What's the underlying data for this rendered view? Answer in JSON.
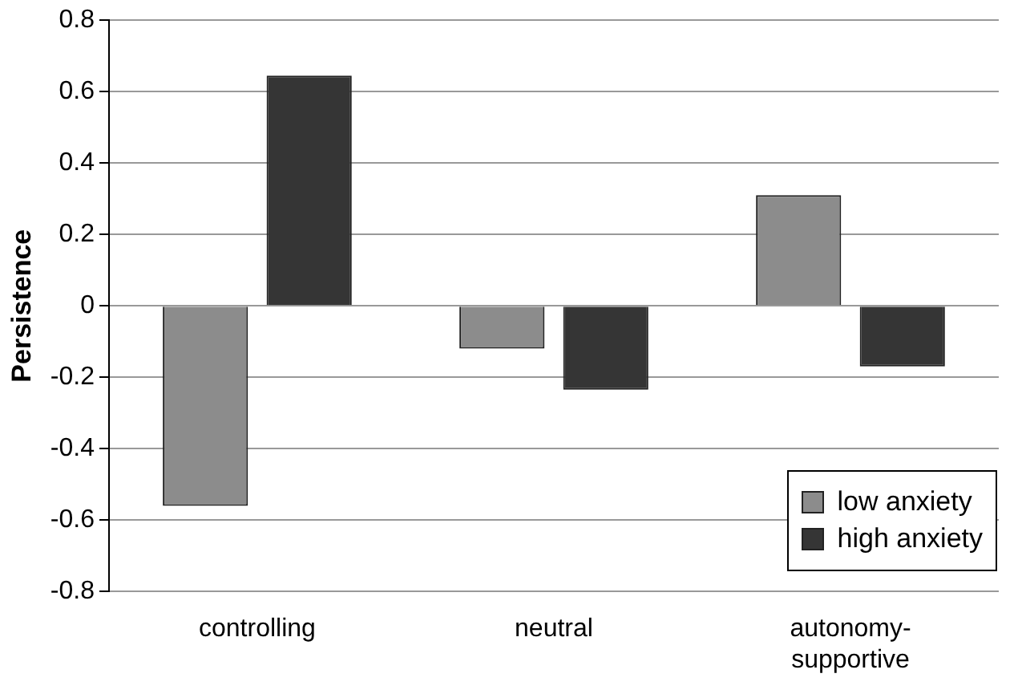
{
  "chart_data": {
    "type": "bar",
    "ylabel": "Persistence",
    "categories": [
      "controlling",
      "neutral",
      "autonomy-supportive"
    ],
    "series": [
      {
        "name": "low anxiety",
        "color": "#8c8c8c",
        "values": [
          -0.56,
          -0.12,
          0.31
        ]
      },
      {
        "name": "high anxiety",
        "color": "#353535",
        "values": [
          0.645,
          -0.235,
          -0.17
        ]
      }
    ],
    "ylim": [
      -0.8,
      0.8
    ],
    "yticks": [
      -0.8,
      -0.6,
      -0.4,
      -0.2,
      0,
      0.2,
      0.4,
      0.6,
      0.8
    ],
    "grid": "y",
    "legend": "bottom right"
  }
}
